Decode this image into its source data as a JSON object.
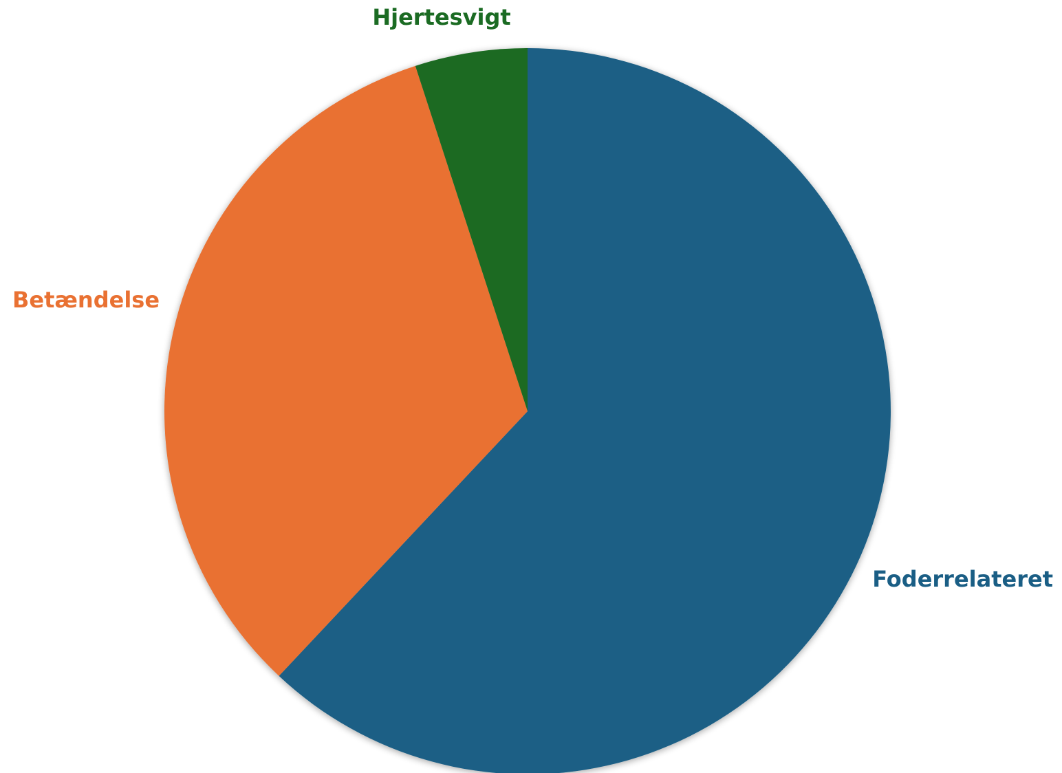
{
  "chart_data": {
    "type": "pie",
    "title": "",
    "start_angle_deg": 0,
    "direction": "clockwise",
    "slices": [
      {
        "label": "Foderrelateret",
        "value": 62,
        "color": "#1a5e85"
      },
      {
        "label": "Betændelse",
        "value": 33,
        "color": "#e97132"
      },
      {
        "label": "Hjertesvigt",
        "value": 5,
        "color": "#1b6b23"
      }
    ]
  }
}
